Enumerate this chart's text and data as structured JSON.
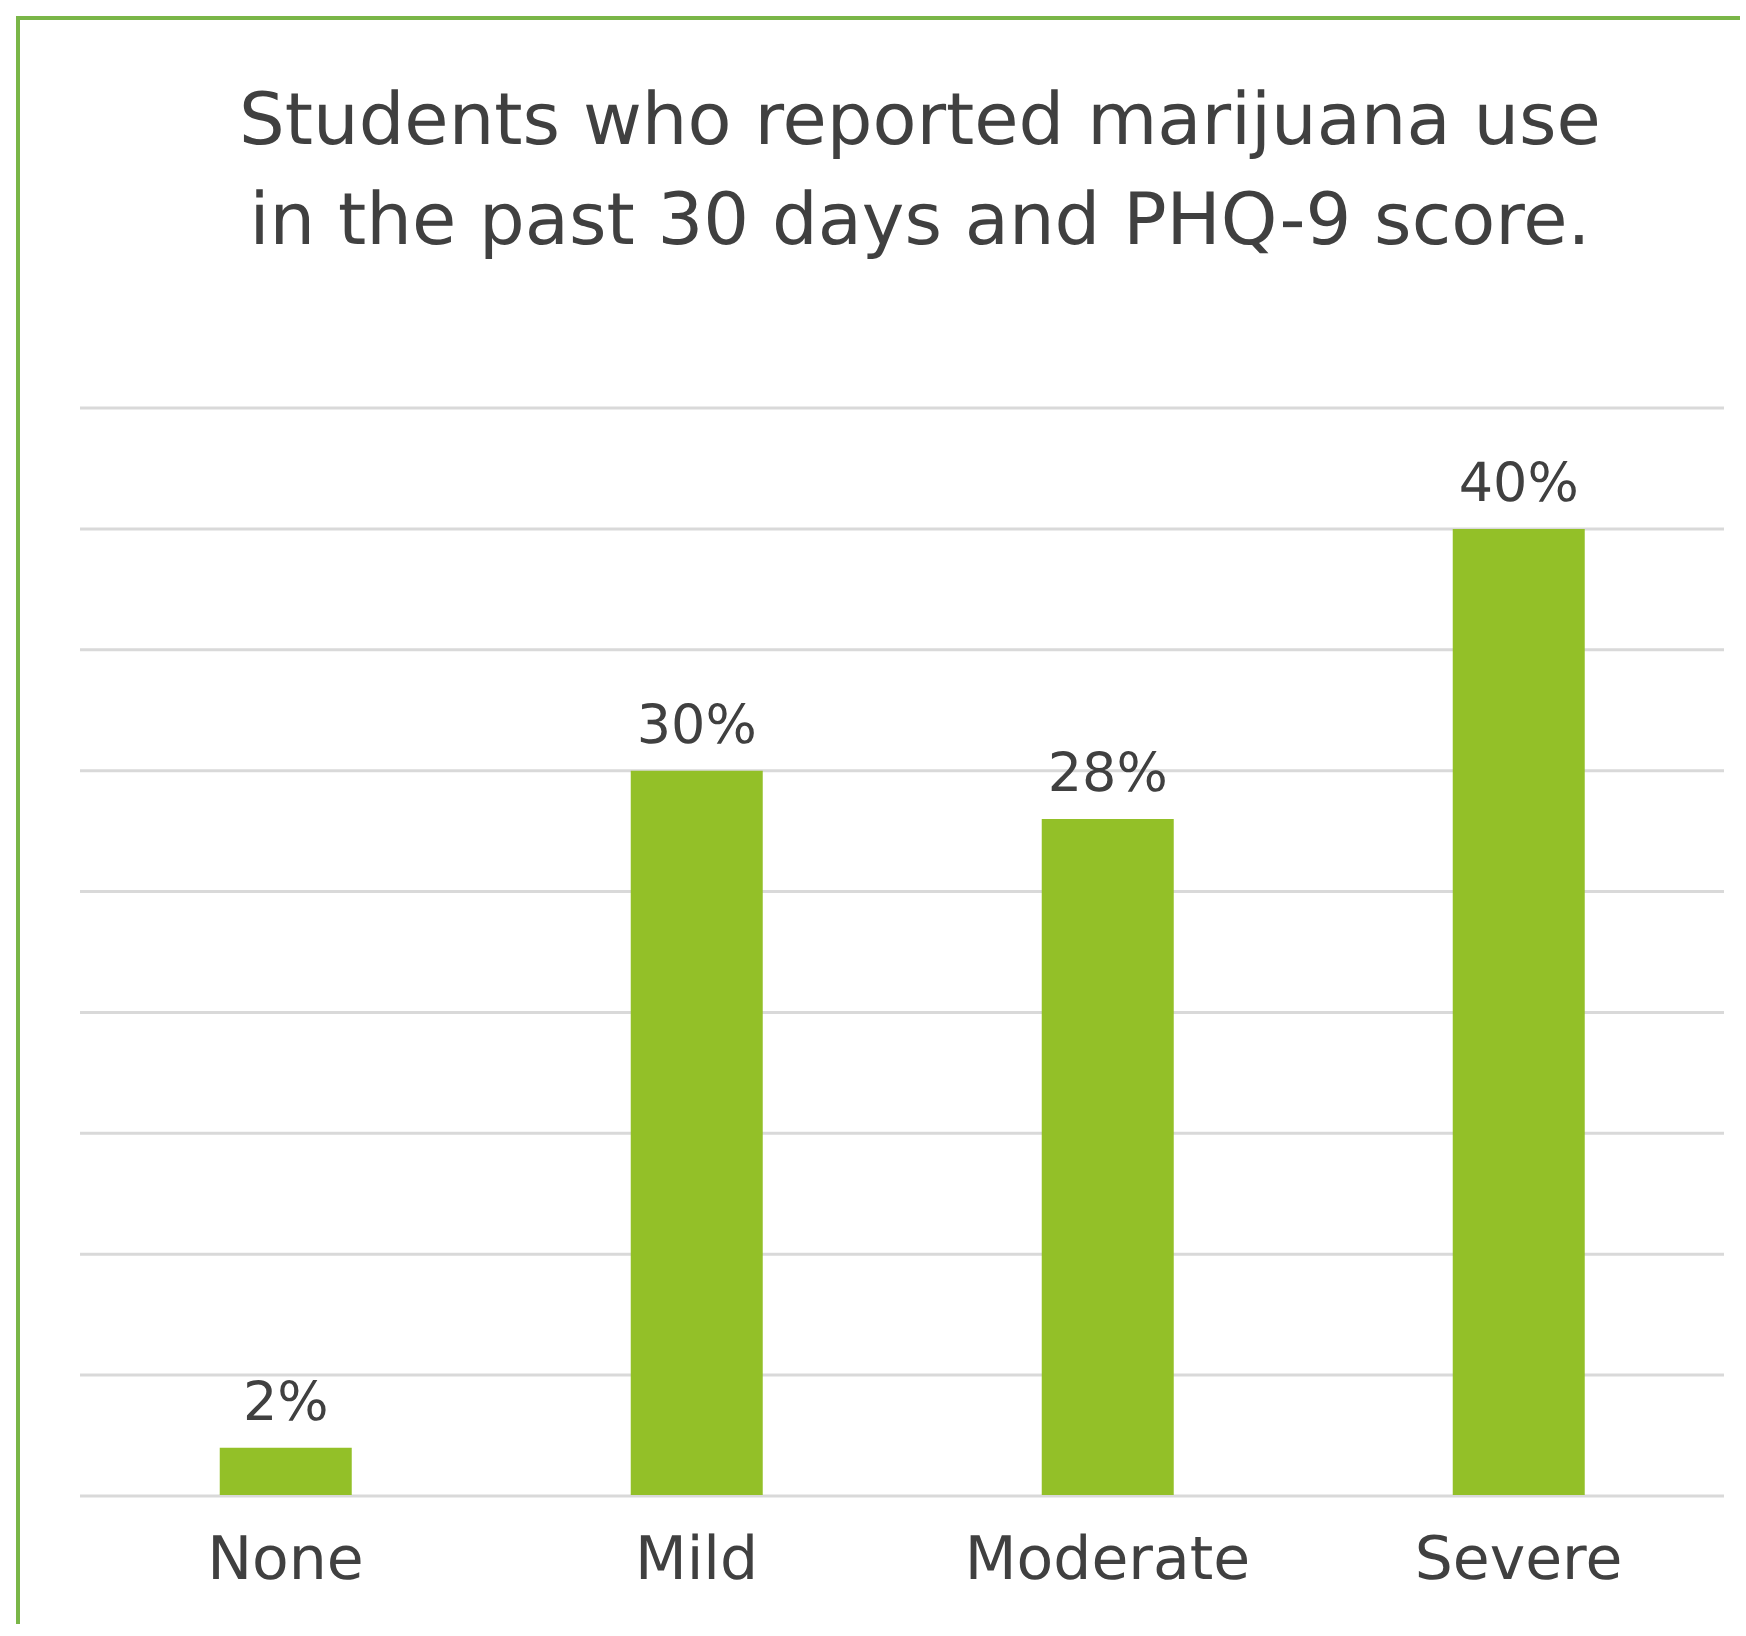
{
  "chart_data": {
    "type": "bar",
    "title": "Students who reported marijuana use in the past 30 days and PHQ-9 score.",
    "categories": [
      "None",
      "Mild",
      "Moderate",
      "Severe"
    ],
    "values": [
      2,
      30,
      28,
      40
    ],
    "value_labels": [
      "2%",
      "30%",
      "28%",
      "40%"
    ],
    "color": "#93c028",
    "ylim": [
      0,
      45
    ],
    "yticks": [
      {
        "value": 0,
        "label": null
      },
      {
        "value": 5,
        "label": null
      },
      {
        "value": 10,
        "label": null
      },
      {
        "value": 15,
        "label": null
      },
      {
        "value": 20,
        "label": null
      },
      {
        "value": 25,
        "label": null
      },
      {
        "value": 30,
        "label": null
      },
      {
        "value": 35,
        "label": null
      },
      {
        "value": 40,
        "label": null
      },
      {
        "value": 45,
        "label": null
      }
    ],
    "grid": "y",
    "tick_labels": "x"
  }
}
